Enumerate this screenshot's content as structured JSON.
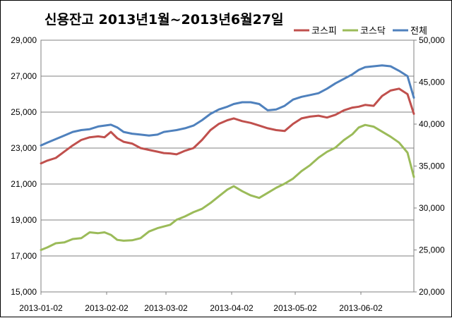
{
  "chart_data": {
    "type": "line",
    "title": "신용잔고 2013년1월~2013년6월27일",
    "xlabel": "",
    "ylabel": "",
    "x_ticks": [
      "2013-01-02",
      "2013-02-02",
      "2013-03-02",
      "2013-04-02",
      "2013-05-02",
      "2013-06-02"
    ],
    "x_range": [
      "2013-01-02",
      "2013-06-27"
    ],
    "y_left": {
      "range": [
        15000,
        29000
      ],
      "ticks": [
        "15,000",
        "17,000",
        "19,000",
        "21,000",
        "23,000",
        "25,000",
        "27,000",
        "29,000"
      ]
    },
    "y_right": {
      "range": [
        20000,
        50000
      ],
      "ticks": [
        "20,000",
        "25,000",
        "30,000",
        "35,000",
        "40,000",
        "45,000",
        "50,000"
      ]
    },
    "grid": "horizontal",
    "legend_position": "top-right",
    "series": [
      {
        "name": "코스피",
        "axis": "left",
        "color": "#c0504d",
        "x": [
          "2013-01-02",
          "2013-01-05",
          "2013-01-09",
          "2013-01-13",
          "2013-01-17",
          "2013-01-21",
          "2013-01-25",
          "2013-01-29",
          "2013-02-01",
          "2013-02-04",
          "2013-02-07",
          "2013-02-10",
          "2013-02-14",
          "2013-02-18",
          "2013-02-22",
          "2013-02-26",
          "2013-03-01",
          "2013-03-04",
          "2013-03-07",
          "2013-03-11",
          "2013-03-15",
          "2013-03-19",
          "2013-03-23",
          "2013-03-27",
          "2013-03-31",
          "2013-04-03",
          "2013-04-07",
          "2013-04-11",
          "2013-04-15",
          "2013-04-19",
          "2013-04-23",
          "2013-04-27",
          "2013-05-01",
          "2013-05-05",
          "2013-05-09",
          "2013-05-13",
          "2013-05-17",
          "2013-05-21",
          "2013-05-25",
          "2013-05-29",
          "2013-06-01",
          "2013-06-04",
          "2013-06-08",
          "2013-06-12",
          "2013-06-16",
          "2013-06-20",
          "2013-06-24",
          "2013-06-27"
        ],
        "values": [
          22150,
          22300,
          22450,
          22800,
          23150,
          23450,
          23600,
          23650,
          23600,
          23900,
          23550,
          23350,
          23250,
          23000,
          22900,
          22800,
          22720,
          22700,
          22650,
          22850,
          23000,
          23450,
          24000,
          24350,
          24550,
          24650,
          24500,
          24400,
          24250,
          24100,
          24000,
          23950,
          24350,
          24650,
          24750,
          24800,
          24700,
          24850,
          25100,
          25250,
          25300,
          25400,
          25350,
          25900,
          26200,
          26300,
          26000,
          24900
        ]
      },
      {
        "name": "코스닥",
        "axis": "right",
        "color": "#9bbb59",
        "x": [
          "2013-01-02",
          "2013-01-05",
          "2013-01-09",
          "2013-01-13",
          "2013-01-17",
          "2013-01-21",
          "2013-01-25",
          "2013-01-29",
          "2013-02-01",
          "2013-02-04",
          "2013-02-07",
          "2013-02-10",
          "2013-02-14",
          "2013-02-18",
          "2013-02-22",
          "2013-02-26",
          "2013-03-01",
          "2013-03-04",
          "2013-03-07",
          "2013-03-11",
          "2013-03-15",
          "2013-03-19",
          "2013-03-23",
          "2013-03-27",
          "2013-03-31",
          "2013-04-03",
          "2013-04-07",
          "2013-04-11",
          "2013-04-15",
          "2013-04-19",
          "2013-04-23",
          "2013-04-27",
          "2013-05-01",
          "2013-05-05",
          "2013-05-09",
          "2013-05-13",
          "2013-05-17",
          "2013-05-21",
          "2013-05-25",
          "2013-05-29",
          "2013-06-01",
          "2013-06-04",
          "2013-06-08",
          "2013-06-12",
          "2013-06-16",
          "2013-06-20",
          "2013-06-24",
          "2013-06-27"
        ],
        "values": [
          25000,
          25300,
          25800,
          25900,
          26300,
          26400,
          27100,
          27000,
          27100,
          26800,
          26200,
          26100,
          26150,
          26400,
          27200,
          27600,
          27800,
          28000,
          28600,
          29000,
          29500,
          29900,
          30600,
          31400,
          32200,
          32600,
          32000,
          31500,
          31200,
          31800,
          32400,
          32900,
          33500,
          34400,
          35100,
          36000,
          36700,
          37200,
          38100,
          38800,
          39600,
          39900,
          39700,
          39100,
          38500,
          37800,
          36600,
          33700
        ]
      },
      {
        "name": "전체",
        "axis": "left",
        "color": "#4f81bd",
        "x": [
          "2013-01-02",
          "2013-01-05",
          "2013-01-09",
          "2013-01-13",
          "2013-01-17",
          "2013-01-21",
          "2013-01-25",
          "2013-01-29",
          "2013-02-01",
          "2013-02-04",
          "2013-02-07",
          "2013-02-10",
          "2013-02-14",
          "2013-02-18",
          "2013-02-22",
          "2013-02-26",
          "2013-03-01",
          "2013-03-04",
          "2013-03-07",
          "2013-03-11",
          "2013-03-15",
          "2013-03-19",
          "2013-03-23",
          "2013-03-27",
          "2013-03-31",
          "2013-04-03",
          "2013-04-07",
          "2013-04-11",
          "2013-04-15",
          "2013-04-19",
          "2013-04-23",
          "2013-04-27",
          "2013-05-01",
          "2013-05-05",
          "2013-05-09",
          "2013-05-13",
          "2013-05-17",
          "2013-05-21",
          "2013-05-25",
          "2013-05-29",
          "2013-06-01",
          "2013-06-04",
          "2013-06-08",
          "2013-06-12",
          "2013-06-16",
          "2013-06-20",
          "2013-06-24",
          "2013-06-27"
        ],
        "values": [
          23150,
          23300,
          23500,
          23700,
          23900,
          24000,
          24050,
          24200,
          24250,
          24300,
          24150,
          23900,
          23800,
          23750,
          23700,
          23750,
          23900,
          23950,
          24000,
          24100,
          24250,
          24550,
          24900,
          25150,
          25300,
          25450,
          25550,
          25550,
          25450,
          25100,
          25150,
          25350,
          25700,
          25850,
          25950,
          26050,
          26300,
          26600,
          26850,
          27100,
          27350,
          27500,
          27550,
          27600,
          27550,
          27300,
          27000,
          25800
        ]
      }
    ]
  }
}
